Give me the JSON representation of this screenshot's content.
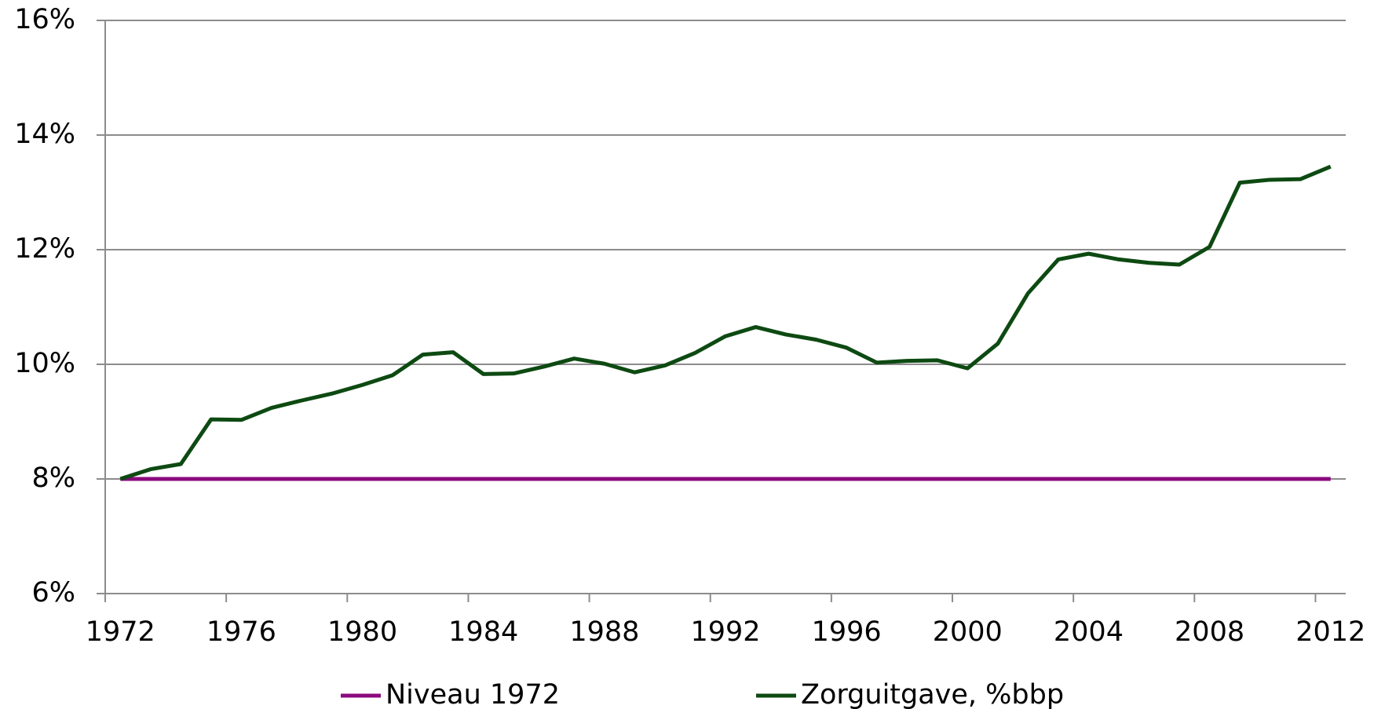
{
  "chart_data": {
    "type": "line",
    "categories": [
      "1972",
      null,
      null,
      null,
      "1976",
      null,
      null,
      null,
      "1980",
      null,
      null,
      null,
      "1984",
      null,
      null,
      null,
      "1988",
      null,
      null,
      null,
      "1992",
      null,
      null,
      null,
      "1996",
      null,
      null,
      null,
      "2000",
      null,
      null,
      null,
      "2004",
      null,
      null,
      null,
      "2008",
      null,
      null,
      null,
      "2012"
    ],
    "series": [
      {
        "name": "Niveau 1972",
        "color": "#8b0a7e",
        "values": [
          8,
          8,
          8,
          8,
          8,
          8,
          8,
          8,
          8,
          8,
          8,
          8,
          8,
          8,
          8,
          8,
          8,
          8,
          8,
          8,
          8,
          8,
          8,
          8,
          8,
          8,
          8,
          8,
          8,
          8,
          8,
          8,
          8,
          8,
          8,
          8,
          8,
          8,
          8,
          8,
          8
        ]
      },
      {
        "name": "Zorguitgave, %bbp",
        "color": "#0d4a12",
        "values": [
          8.0,
          8.17,
          8.26,
          9.04,
          9.03,
          9.24,
          9.37,
          9.49,
          9.64,
          9.81,
          10.17,
          10.21,
          9.83,
          9.84,
          9.96,
          10.1,
          10.01,
          9.86,
          9.98,
          10.2,
          10.49,
          10.65,
          10.52,
          10.43,
          10.29,
          10.03,
          10.06,
          10.07,
          9.93,
          10.36,
          11.24,
          11.83,
          11.93,
          11.83,
          11.77,
          11.74,
          12.05,
          13.17,
          13.22,
          13.23,
          13.45
        ]
      }
    ],
    "ylim": [
      6,
      16
    ],
    "yticks": [
      {
        "value": 6,
        "label": "6%"
      },
      {
        "value": 8,
        "label": "8%"
      },
      {
        "value": 10,
        "label": "10%"
      },
      {
        "value": 12,
        "label": "12%"
      },
      {
        "value": 14,
        "label": "14%"
      },
      {
        "value": 16,
        "label": "16%"
      }
    ],
    "grid": true,
    "legend": "bottom"
  }
}
